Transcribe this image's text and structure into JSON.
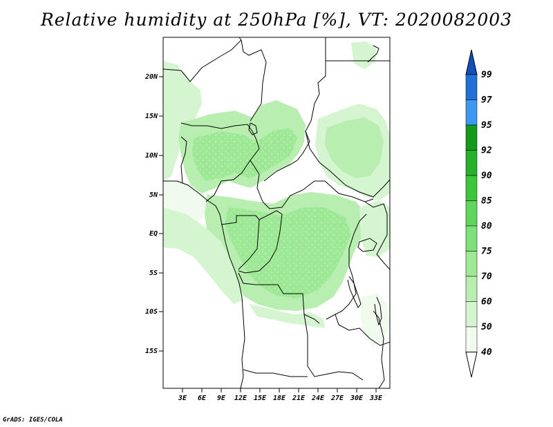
{
  "title": "Relative humidity at 250hPa [%], VT: 2020082003",
  "credit": "GrADS: IGES/COLA",
  "colors": {
    "rh_40_50": "#f0fbee",
    "rh_50_60": "#d5f5d0",
    "rh_60_70": "#b8eeb0",
    "rh_70_75": "#9de895",
    "rh_75_80": "#7fe07a",
    "rh_80_85": "#5ed65b",
    "rh_85_90": "#3cc63c",
    "rh_90_92": "#27b12a",
    "rh_92_95": "#169a1e",
    "rh_95_97": "#3c98f0",
    "rh_97_99": "#2070d8",
    "rh_99_up": "#1050b8"
  },
  "map": {
    "lat_labels": [
      "20N",
      "15N",
      "10N",
      "5N",
      "EQ",
      "5S",
      "10S",
      "15S"
    ],
    "lon_labels": [
      "3E",
      "6E",
      "9E",
      "12E",
      "15E",
      "18E",
      "21E",
      "24E",
      "27E",
      "30E",
      "33E"
    ]
  },
  "colorbar": {
    "levels": [
      "99",
      "97",
      "95",
      "92",
      "90",
      "85",
      "80",
      "75",
      "70",
      "60",
      "50",
      "40"
    ]
  }
}
